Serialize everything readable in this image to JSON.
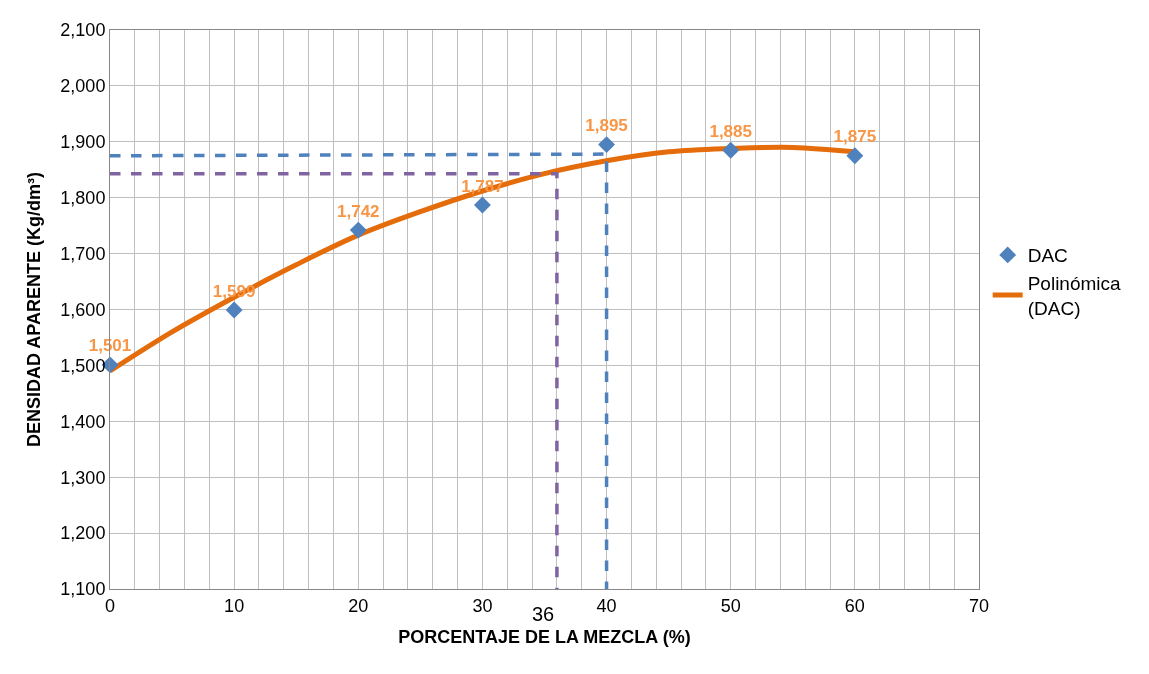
{
  "chart_data": {
    "type": "scatter",
    "xlabel": "PORCENTAJE DE LA MEZCLA (%)",
    "ylabel": "DENSIDAD APARENTE (Kg/dm³)",
    "x": [
      0,
      10,
      20,
      30,
      40,
      50,
      60
    ],
    "series": [
      {
        "name": "DAC",
        "color": "#4f81bd",
        "marker": "diamond",
        "values": [
          1501,
          1599,
          1742,
          1787,
          1895,
          1885,
          1875
        ],
        "value_labels": [
          "1,501",
          "1,599",
          "1,742",
          "1,787",
          "1,895",
          "1,885",
          "1,875"
        ]
      },
      {
        "name": "Polinómica (DAC)",
        "type": "line",
        "color": "#e46c0a",
        "x": [
          0,
          5,
          10,
          15,
          20,
          25,
          30,
          35,
          40,
          45,
          50,
          55,
          60
        ],
        "values": [
          1490,
          1560,
          1622,
          1680,
          1733,
          1775,
          1812,
          1843,
          1866,
          1882,
          1888,
          1890,
          1882
        ]
      },
      {
        "type": "line",
        "color": "#4f81bd",
        "line_style": "dashed",
        "x": [
          0,
          40,
          40
        ],
        "values": [
          1875,
          1878,
          1100
        ]
      },
      {
        "type": "line",
        "color": "#8064a2",
        "line_style": "dashed",
        "x": [
          0,
          36,
          36
        ],
        "values": [
          1843,
          1843,
          1100
        ]
      }
    ],
    "annotations": [
      {
        "text": "36",
        "x": 36,
        "y": 1100
      }
    ],
    "xlim": [
      0,
      70
    ],
    "xticks": [
      0,
      10,
      20,
      30,
      40,
      50,
      60,
      70
    ],
    "ylim": [
      1100,
      2100
    ],
    "yticks": [
      {
        "value": 1100,
        "label": "1,100"
      },
      {
        "value": 1200,
        "label": "1,200"
      },
      {
        "value": 1300,
        "label": "1,300"
      },
      {
        "value": 1400,
        "label": "1,400"
      },
      {
        "value": 1500,
        "label": "1,500"
      },
      {
        "value": 1600,
        "label": "1,600"
      },
      {
        "value": 1700,
        "label": "1,700"
      },
      {
        "value": 1800,
        "label": "1,800"
      },
      {
        "value": 1900,
        "label": "1,900"
      },
      {
        "value": 2000,
        "label": "2,000"
      },
      {
        "value": 2100,
        "label": "2,100"
      }
    ],
    "grid": true,
    "legend": "right"
  }
}
